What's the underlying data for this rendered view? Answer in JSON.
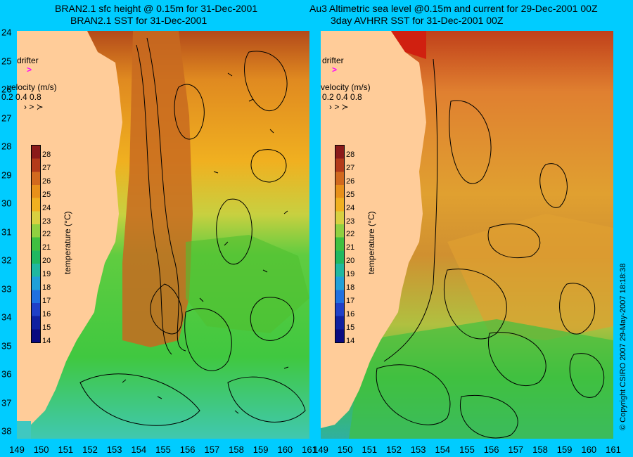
{
  "titles": {
    "left_line1": "BRAN2.1 sfc height @ 0.15m for 31-Dec-2001",
    "left_line2": "BRAN2.1 SST for 31-Dec-2001",
    "right_line1": "Au3 Altimetric sea level  @0.15m and current for 29-Dec-2001 00Z",
    "right_line2": "3day AVHRR SST for 31-Dec-2001 00Z"
  },
  "latitudes": [
    "24",
    "25",
    "26",
    "27",
    "28",
    "29",
    "30",
    "31",
    "32",
    "33",
    "34",
    "35",
    "36",
    "37",
    "38"
  ],
  "longitudes": [
    "149",
    "150",
    "151",
    "152",
    "153",
    "154",
    "155",
    "156",
    "157",
    "158",
    "159",
    "160",
    "161"
  ],
  "legend": {
    "drifter": "drifter",
    "velocity_title": "velocity (m/s)",
    "velocity_values": "0.2 0.4 0.8"
  },
  "colorbar": {
    "ticks": [
      "28",
      "27",
      "26",
      "25",
      "24",
      "23",
      "22",
      "21",
      "20",
      "19",
      "18",
      "17",
      "16",
      "15",
      "14"
    ],
    "title": "temperature (°C)"
  },
  "copyright": "© Copyright CSIRO 2007   29-May-2007 18:18:38",
  "colors": {
    "background": "#00ccff",
    "land": "#ffcc99",
    "drifter_marker": "#ff00ff"
  }
}
